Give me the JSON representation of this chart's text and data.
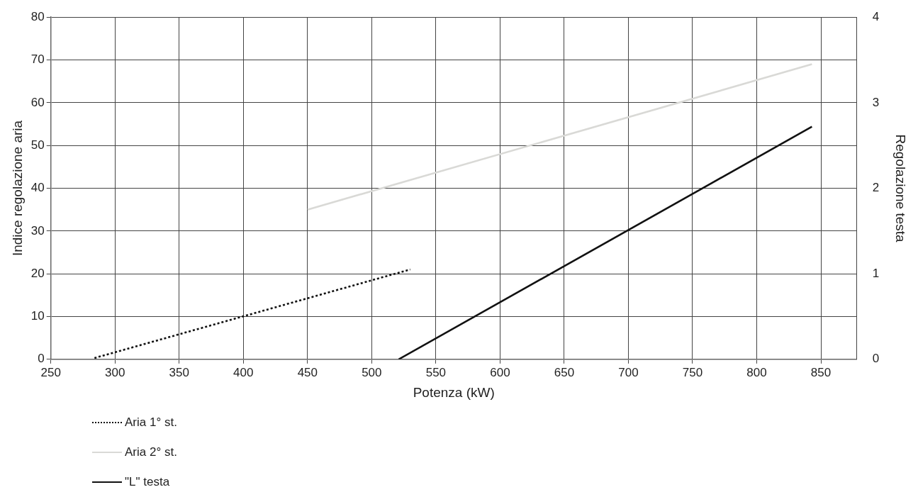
{
  "chart_data": {
    "type": "line",
    "xlabel": "Potenza (kW)",
    "ylabel": "Indice regolazione aria",
    "y2label": "Regolazione testa",
    "xlim": [
      250,
      878
    ],
    "xticks": [
      250,
      300,
      350,
      400,
      450,
      500,
      550,
      600,
      650,
      700,
      750,
      800,
      850
    ],
    "ylim": [
      0,
      80
    ],
    "yticks": [
      0,
      10,
      20,
      30,
      40,
      50,
      60,
      70,
      80
    ],
    "y2lim": [
      0,
      4
    ],
    "y2ticks": [
      0,
      1,
      2,
      3,
      4
    ],
    "grid": true,
    "legend": "bottom left",
    "marker": "none",
    "series": [
      {
        "name": "Aria 1° st.",
        "color": "#111111",
        "line_style": "dotted",
        "x": [
          284,
          530
        ],
        "values": [
          0.3,
          21
        ]
      },
      {
        "name": "Aria 2° st.",
        "color": "#d9d9d6",
        "line_style": "solid",
        "x": [
          450,
          843
        ],
        "values": [
          35,
          69
        ]
      },
      {
        "name": "\"L\" testa",
        "color": "#111111",
        "line_style": "solid",
        "axis": "y2",
        "x": [
          521,
          843
        ],
        "values": [
          0,
          2.72
        ]
      }
    ]
  }
}
